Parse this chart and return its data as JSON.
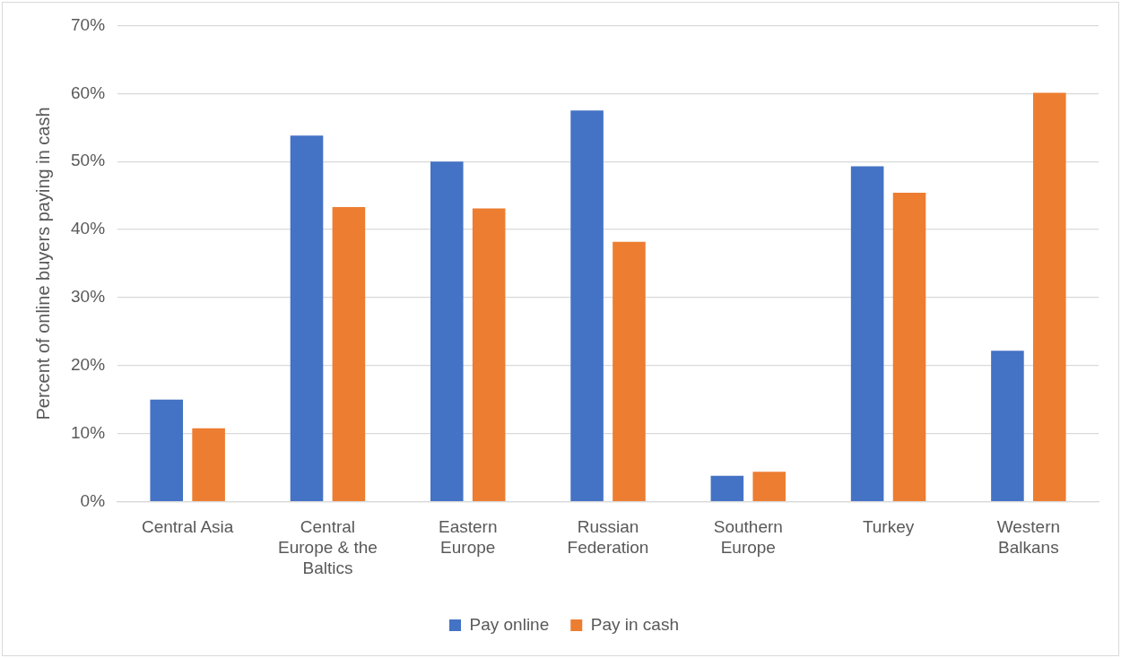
{
  "chart_data": {
    "type": "bar",
    "ylabel": "Percent of online buyers paying in cash",
    "categories": [
      "Central Asia",
      "Central Europe & the Baltics",
      "Eastern Europe",
      "Russian Federation",
      "Southern Europe",
      "Turkey",
      "Western Balkans"
    ],
    "series": [
      {
        "name": "Pay online",
        "color": "#4472c4",
        "values": [
          15.0,
          53.8,
          50.0,
          57.5,
          3.8,
          49.3,
          22.2
        ]
      },
      {
        "name": "Pay in cash",
        "color": "#ed7d31",
        "values": [
          10.8,
          43.3,
          43.1,
          38.2,
          4.4,
          45.4,
          60.1
        ]
      }
    ],
    "ylim": [
      0,
      70
    ],
    "yticks": [
      {
        "value": 0,
        "label": "0%"
      },
      {
        "value": 10,
        "label": "10%"
      },
      {
        "value": 20,
        "label": "20%"
      },
      {
        "value": 30,
        "label": "30%"
      },
      {
        "value": 40,
        "label": "40%"
      },
      {
        "value": 50,
        "label": "50%"
      },
      {
        "value": 60,
        "label": "60%"
      },
      {
        "value": 70,
        "label": "70%"
      }
    ],
    "grid": "y",
    "legend": "bottom"
  }
}
